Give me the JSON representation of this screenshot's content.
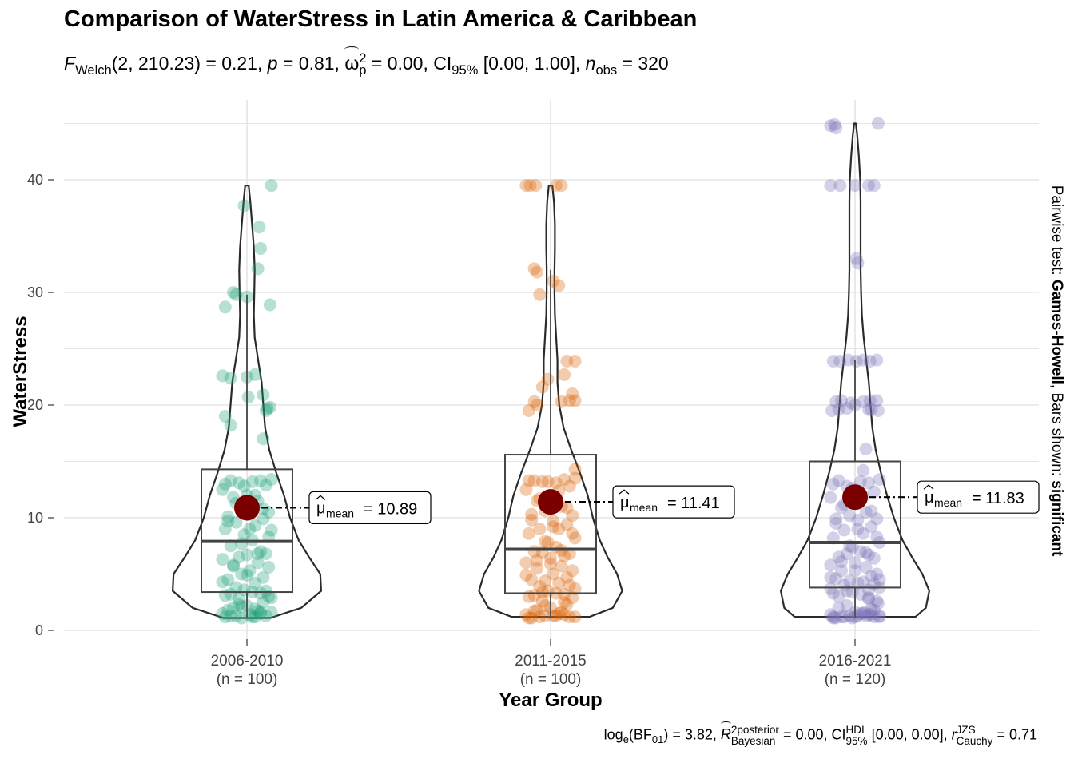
{
  "title": "Comparison of WaterStress in Latin America & Caribbean",
  "subtitle": {
    "stat_name": "F",
    "stat_sub": "Welch",
    "df": "(2, 210.23)",
    "stat_value": "= 0.21,",
    "p_label": "p",
    "p_value": "= 0.81,",
    "effect_symbol": "ω",
    "effect_sup": "2",
    "effect_sub": "p",
    "effect_value": "= 0.00,",
    "ci_label": "CI",
    "ci_sub": "95%",
    "ci_value": "[0.00, 1.00],",
    "n_label": "n",
    "n_sub": "obs",
    "n_value": "= 320"
  },
  "caption": {
    "bf_label": "log",
    "bf_sub": "e",
    "bf_inner": "(BF",
    "bf_inner_sub": "01",
    "bf_value": ") = 3.82,",
    "r2_label": "R",
    "r2_sup": "2",
    "r2_sup2": "posterior",
    "r2_sub": "Bayesian",
    "r2_value": "= 0.00,",
    "ci_label": "CI",
    "ci_sup": "HDI",
    "ci_sub": "95%",
    "ci_value": "[0.00, 0.00],",
    "r_label": "r",
    "r_sup": "JZS",
    "r_sub": "Cauchy",
    "r_value": "= 0.71"
  },
  "pairwise": {
    "prefix": "Pairwise test: ",
    "test": "Games-Howell",
    "middle": ", Bars shown: ",
    "shown": "significant"
  },
  "colors": {
    "grid": "#e5e5e5",
    "mean_point": "#7a0000",
    "outline": "#2a2a2a",
    "groups": [
      "#1b9e77",
      "#d95f02",
      "#7570b3"
    ]
  },
  "chart_data": {
    "type": "violin-box",
    "xlabel": "Year Group",
    "ylabel": "WaterStress",
    "ylim": [
      0,
      46
    ],
    "y_ticks": [
      0,
      10,
      20,
      30,
      40
    ],
    "grid": true,
    "categories": [
      "2006-2010",
      "2011-2015",
      "2016-2021"
    ],
    "n_labels": [
      "(n = 100)",
      "(n = 100)",
      "(n = 120)"
    ],
    "groups": [
      {
        "name": "2006-2010",
        "mean": 10.89,
        "mean_label": "= 10.89",
        "box": {
          "q1": 3.4,
          "median": 7.9,
          "q3": 14.3,
          "whisker_low": 1.1,
          "whisker_high": 29.8
        },
        "violin": [
          [
            1.1,
            0.27
          ],
          [
            2.0,
            0.63
          ],
          [
            3.5,
            0.86
          ],
          [
            5.0,
            0.85
          ],
          [
            6.5,
            0.72
          ],
          [
            8.0,
            0.6
          ],
          [
            10.0,
            0.5
          ],
          [
            12.0,
            0.43
          ],
          [
            14.0,
            0.34
          ],
          [
            16.0,
            0.26
          ],
          [
            18.0,
            0.21
          ],
          [
            20.0,
            0.19
          ],
          [
            22.0,
            0.17
          ],
          [
            24.0,
            0.13
          ],
          [
            26.0,
            0.09
          ],
          [
            28.0,
            0.08
          ],
          [
            30.0,
            0.085
          ],
          [
            32.0,
            0.09
          ],
          [
            34.0,
            0.08
          ],
          [
            36.0,
            0.06
          ],
          [
            38.0,
            0.04
          ],
          [
            39.5,
            0.02
          ]
        ],
        "points": [
          1.2,
          1.3,
          1.4,
          1.5,
          1.6,
          1.8,
          1.1,
          1.2,
          1.3,
          1.5,
          1.7,
          2.0,
          2.2,
          2.5,
          2.8,
          3.0,
          3.2,
          3.4,
          3.6,
          3.3,
          3.1,
          2.9,
          3.8,
          4.2,
          4.5,
          4.7,
          5.0,
          5.3,
          5.6,
          5.8,
          6.0,
          6.3,
          6.7,
          6.8,
          6.5,
          7.0,
          7.5,
          8.0,
          8.5,
          8.9,
          9.0,
          9.3,
          9.6,
          9.9,
          10.1,
          10.3,
          10.5,
          11.0,
          11.5,
          11.8,
          12.0,
          12.5,
          12.9,
          13.1,
          13.3,
          13.3,
          13.2,
          13.4,
          13.0,
          12.8,
          12.0,
          11.3,
          10.8,
          9.7,
          9.0,
          8.3,
          7.7,
          6.8,
          5.7,
          4.9,
          4.3,
          3.5,
          2.3,
          1.6,
          1.3,
          1.2,
          17.0,
          18.2,
          19.0,
          19.5,
          19.8,
          19.7,
          20.7,
          20.9,
          22.4,
          22.6,
          22.5,
          22.7,
          28.7,
          28.9,
          29.6,
          29.8,
          30.0,
          32.1,
          33.9,
          35.8,
          37.7,
          39.5,
          1.9,
          2.1
        ],
        "offsets": [
          -0.8,
          -0.4,
          0.1,
          0.5,
          0.9,
          -0.7,
          -0.2,
          0.3,
          0.7,
          -0.9,
          0.4,
          -0.5,
          0.0,
          0.6,
          -0.3,
          0.8,
          -0.6,
          0.2,
          -0.1,
          0.5,
          -0.8,
          0.9,
          -0.4,
          0.3,
          -0.7,
          0.6,
          -0.2,
          0.1,
          0.8,
          -0.5,
          0.4,
          -0.9,
          0.0,
          0.7,
          -0.3,
          0.5,
          -0.6,
          0.2,
          -0.1,
          0.9,
          -0.8,
          0.3,
          -0.4,
          0.6,
          -0.7,
          0.1,
          0.8,
          -0.2,
          0.4,
          -0.5,
          0.0,
          -0.9,
          0.7,
          -0.3,
          0.5,
          -0.6,
          0.2,
          0.9,
          -0.8,
          -0.1,
          0.3,
          -0.4,
          0.6,
          -0.7,
          0.1,
          0.8,
          -0.2,
          0.4,
          -0.5,
          0.0,
          -0.9,
          0.7,
          -0.3,
          0.5,
          -0.6,
          0.2,
          0.6,
          -0.6,
          -0.8,
          0.7,
          0.85,
          0.75,
          0.05,
          0.6,
          -0.6,
          -0.9,
          0.0,
          0.3,
          -0.8,
          0.85,
          0.0,
          -0.4,
          -0.5,
          0.4,
          0.5,
          0.45,
          -0.1,
          0.9,
          0.3,
          -0.2
        ]
      },
      {
        "name": "2011-2015",
        "mean": 11.41,
        "mean_label": "= 11.41",
        "box": {
          "q1": 3.3,
          "median": 7.2,
          "q3": 15.6,
          "whisker_low": 1.1,
          "whisker_high": 32.0
        },
        "violin": [
          [
            1.2,
            0.45
          ],
          [
            2.0,
            0.72
          ],
          [
            3.5,
            0.83
          ],
          [
            5.0,
            0.77
          ],
          [
            6.5,
            0.66
          ],
          [
            8.0,
            0.57
          ],
          [
            10.0,
            0.49
          ],
          [
            12.0,
            0.43
          ],
          [
            14.0,
            0.34
          ],
          [
            16.0,
            0.24
          ],
          [
            18.0,
            0.15
          ],
          [
            20.0,
            0.1
          ],
          [
            22.0,
            0.08
          ],
          [
            24.0,
            0.08
          ],
          [
            26.0,
            0.065
          ],
          [
            28.0,
            0.05
          ],
          [
            30.0,
            0.045
          ],
          [
            32.0,
            0.045
          ],
          [
            34.0,
            0.05
          ],
          [
            36.0,
            0.05
          ],
          [
            38.0,
            0.04
          ],
          [
            39.5,
            0.02
          ]
        ],
        "points": [
          1.1,
          1.2,
          1.3,
          1.4,
          1.2,
          1.1,
          1.3,
          1.5,
          1.2,
          1.4,
          1.6,
          1.8,
          2.0,
          2.3,
          2.6,
          2.9,
          3.1,
          3.3,
          3.5,
          3.2,
          3.0,
          3.7,
          3.9,
          4.2,
          4.5,
          4.7,
          4.4,
          5.0,
          5.3,
          5.5,
          5.7,
          6.0,
          6.4,
          6.8,
          6.9,
          6.6,
          7.0,
          7.4,
          7.8,
          8.2,
          8.6,
          9.0,
          9.0,
          9.4,
          9.8,
          9.7,
          10.2,
          10.6,
          11.0,
          11.5,
          12.0,
          12.5,
          12.8,
          13.2,
          13.4,
          13.3,
          13.1,
          13.5,
          13.3,
          13.2,
          12.4,
          11.7,
          10.9,
          10.3,
          9.2,
          8.6,
          7.9,
          7.1,
          6.2,
          5.9,
          4.9,
          4.0,
          3.4,
          2.5,
          1.7,
          1.3,
          14.3,
          19.5,
          20.0,
          20.3,
          20.4,
          20.4,
          20.3,
          21.0,
          21.6,
          22.3,
          22.7,
          23.9,
          23.9,
          29.8,
          30.6,
          31.0,
          31.8,
          32.1,
          39.5,
          39.5,
          39.5,
          39.5,
          39.5,
          2.2
        ],
        "offsets": [
          -0.8,
          -0.4,
          0.1,
          0.5,
          0.9,
          -0.7,
          -0.2,
          0.3,
          0.7,
          -0.9,
          0.4,
          -0.5,
          0.0,
          0.6,
          -0.3,
          0.8,
          -0.6,
          0.2,
          -0.1,
          0.5,
          -0.8,
          0.9,
          -0.4,
          0.3,
          -0.7,
          0.6,
          -0.2,
          0.1,
          0.8,
          -0.5,
          0.4,
          -0.9,
          0.0,
          0.7,
          -0.3,
          0.5,
          -0.6,
          0.2,
          -0.1,
          0.9,
          -0.8,
          0.3,
          -0.4,
          0.6,
          -0.7,
          0.1,
          0.8,
          -0.2,
          0.4,
          -0.5,
          0.0,
          -0.9,
          0.7,
          -0.3,
          0.5,
          -0.6,
          0.2,
          0.9,
          -0.8,
          -0.1,
          0.3,
          -0.4,
          0.6,
          -0.7,
          0.1,
          0.8,
          -0.2,
          0.4,
          -0.5,
          0.0,
          -0.9,
          0.7,
          -0.3,
          0.5,
          -0.6,
          0.2,
          0.9,
          -0.8,
          -0.5,
          0.4,
          0.9,
          0.7,
          -0.6,
          0.8,
          -0.3,
          -0.1,
          0.5,
          0.9,
          0.6,
          -0.4,
          0.3,
          0.1,
          -0.5,
          -0.6,
          -0.9,
          -0.75,
          -0.55,
          0.2,
          0.4,
          -0.2
        ]
      },
      {
        "name": "2016-2021",
        "mean": 11.83,
        "mean_label": "= 11.83",
        "box": {
          "q1": 3.8,
          "median": 7.8,
          "q3": 15.0,
          "whisker_low": 1.1,
          "whisker_high": 24.0
        },
        "violin": [
          [
            1.2,
            0.7
          ],
          [
            2.0,
            0.82
          ],
          [
            3.5,
            0.86
          ],
          [
            5.0,
            0.78
          ],
          [
            6.5,
            0.66
          ],
          [
            8.0,
            0.55
          ],
          [
            10.0,
            0.45
          ],
          [
            12.0,
            0.37
          ],
          [
            14.0,
            0.3
          ],
          [
            16.0,
            0.24
          ],
          [
            18.0,
            0.2
          ],
          [
            20.0,
            0.18
          ],
          [
            22.0,
            0.16
          ],
          [
            24.0,
            0.13
          ],
          [
            26.0,
            0.1
          ],
          [
            28.0,
            0.08
          ],
          [
            30.0,
            0.07
          ],
          [
            32.0,
            0.065
          ],
          [
            34.0,
            0.065
          ],
          [
            36.0,
            0.065
          ],
          [
            38.0,
            0.065
          ],
          [
            40.0,
            0.06
          ],
          [
            42.0,
            0.045
          ],
          [
            44.0,
            0.025
          ],
          [
            45.0,
            0.01
          ]
        ],
        "points": [
          1.1,
          1.2,
          1.3,
          1.4,
          1.2,
          1.1,
          1.3,
          1.5,
          1.2,
          1.4,
          1.3,
          1.2,
          1.6,
          1.9,
          2.2,
          2.6,
          3.0,
          3.2,
          3.4,
          3.6,
          3.3,
          3.8,
          4.0,
          4.3,
          4.6,
          4.8,
          4.4,
          4.2,
          5.0,
          5.3,
          5.6,
          5.8,
          6.0,
          6.4,
          6.8,
          6.7,
          6.5,
          7.0,
          7.4,
          7.8,
          8.2,
          8.6,
          8.9,
          9.2,
          9.5,
          9.8,
          9.9,
          10.2,
          10.5,
          10.9,
          11.3,
          11.8,
          12.3,
          12.8,
          13.1,
          13.3,
          13.2,
          13.4,
          13.0,
          12.6,
          11.9,
          11.2,
          10.6,
          9.9,
          9.0,
          8.3,
          7.5,
          6.9,
          6.1,
          5.3,
          4.7,
          4.1,
          3.5,
          2.8,
          2.0,
          1.5,
          1.3,
          1.2,
          1.4,
          1.1,
          19.5,
          19.6,
          19.7,
          20.0,
          20.3,
          20.4,
          20.3,
          20.4,
          19.5,
          19.6,
          20.2,
          23.9,
          23.9,
          24.0,
          23.9,
          24.0,
          23.9,
          32.6,
          33.0,
          39.5,
          39.5,
          39.5,
          39.5,
          39.5,
          44.8,
          44.6,
          44.9,
          45.0,
          24.0,
          20.4,
          19.6,
          16.1,
          14.2,
          3.7,
          2.4,
          1.8,
          2.9,
          4.5,
          1.6,
          1.2
        ],
        "offsets": [
          -0.8,
          -0.4,
          0.1,
          0.5,
          0.9,
          -0.7,
          -0.2,
          0.3,
          0.7,
          -0.9,
          0.4,
          -0.5,
          0.0,
          0.6,
          -0.3,
          0.8,
          -0.6,
          0.2,
          -0.1,
          0.5,
          -0.8,
          0.9,
          -0.4,
          0.3,
          -0.7,
          0.6,
          -0.2,
          0.1,
          0.8,
          -0.5,
          0.4,
          -0.9,
          0.0,
          0.7,
          -0.3,
          0.5,
          -0.6,
          0.2,
          -0.1,
          0.9,
          -0.8,
          0.3,
          -0.4,
          0.6,
          -0.7,
          0.1,
          0.8,
          -0.2,
          0.4,
          -0.5,
          0.0,
          -0.9,
          0.7,
          -0.3,
          0.5,
          -0.6,
          0.2,
          0.9,
          -0.8,
          -0.1,
          0.3,
          -0.4,
          0.6,
          -0.7,
          0.1,
          0.8,
          -0.2,
          0.4,
          -0.5,
          0.0,
          -0.9,
          0.7,
          -0.3,
          0.5,
          -0.6,
          0.2,
          0.9,
          -0.8,
          0.6,
          -0.1,
          -0.85,
          -0.6,
          -0.3,
          0.0,
          0.3,
          0.55,
          -0.7,
          0.8,
          0.85,
          0.5,
          -0.15,
          -0.8,
          -0.55,
          -0.25,
          0.05,
          0.3,
          0.55,
          0.1,
          0.05,
          -0.9,
          -0.55,
          0.0,
          0.5,
          0.7,
          -0.9,
          -0.7,
          -0.75,
          0.85,
          0.8,
          -0.5,
          0.6,
          0.4,
          0.3,
          -0.9,
          0.85,
          0.7,
          0.5,
          0.9,
          0.35
        ]
      }
    ]
  }
}
